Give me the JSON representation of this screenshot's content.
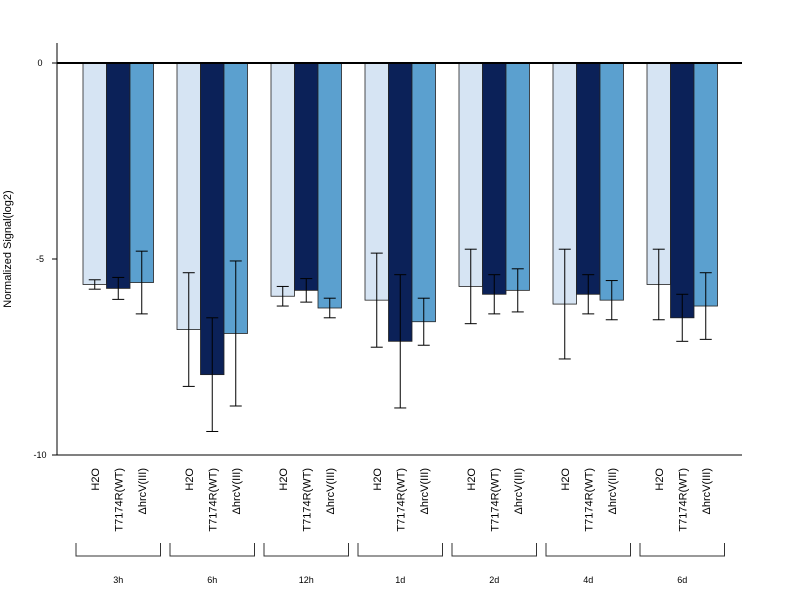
{
  "chart_data": {
    "type": "bar",
    "ylabel": "Normalized Signal(log2)",
    "ylim": [
      -10,
      0.5
    ],
    "yticks": [
      0,
      -5,
      -10
    ],
    "groups": [
      "3h",
      "6h",
      "12h",
      "1d",
      "2d",
      "4d",
      "6d"
    ],
    "series": [
      {
        "name": "H2O",
        "color": "#d6e4f3",
        "values": [
          -5.65,
          -6.8,
          -5.95,
          -6.05,
          -5.7,
          -6.15,
          -5.65
        ],
        "error": [
          0.12,
          1.45,
          0.25,
          1.2,
          0.95,
          1.4,
          0.9
        ]
      },
      {
        "name": "T7174R(WT)",
        "color": "#0b2158",
        "values": [
          -5.75,
          -7.95,
          -5.8,
          -7.1,
          -5.9,
          -5.9,
          -6.5
        ],
        "error": [
          0.28,
          1.45,
          0.3,
          1.7,
          0.5,
          0.5,
          0.6
        ]
      },
      {
        "name": "ΔhrcV(III)",
        "color": "#5ba0cf",
        "values": [
          -5.6,
          -6.9,
          -6.25,
          -6.6,
          -5.8,
          -6.05,
          -6.2
        ],
        "error": [
          0.8,
          1.85,
          0.25,
          0.6,
          0.55,
          0.5,
          0.85
        ]
      }
    ]
  }
}
